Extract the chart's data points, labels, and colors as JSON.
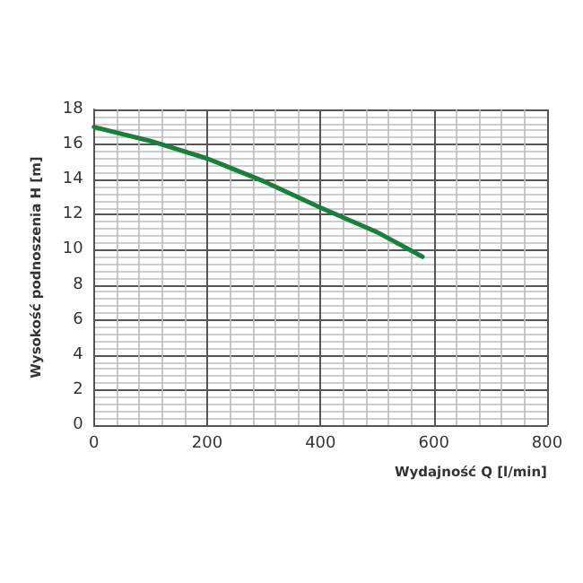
{
  "chart_data": {
    "type": "line",
    "xlabel": "Wydajność Q [l/min]",
    "ylabel": "Wysokość podnoszenia H [m]",
    "x": [
      0,
      100,
      200,
      300,
      400,
      500,
      580
    ],
    "series": [
      {
        "color": "#1a7f3c",
        "values": [
          17,
          16.2,
          15.2,
          13.9,
          12.4,
          11,
          9.6
        ]
      }
    ],
    "xlim": [
      0,
      800
    ],
    "xticks": [
      0,
      200,
      400,
      600,
      800
    ],
    "ylim": [
      0,
      18
    ],
    "yticks": [
      0,
      2,
      4,
      6,
      8,
      10,
      12,
      14,
      16,
      18
    ],
    "grid": true,
    "marker": "none",
    "line_style": "solid"
  }
}
